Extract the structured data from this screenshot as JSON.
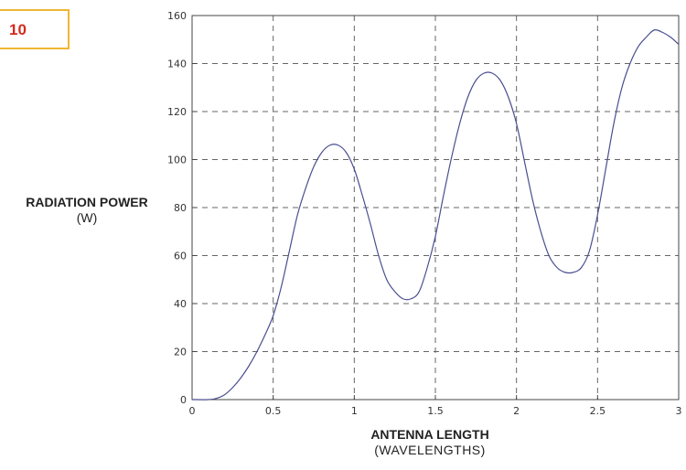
{
  "figure_number": "10",
  "chart_data": {
    "type": "line",
    "xlabel": "ANTENNA LENGTH",
    "xlabel_unit": "(WAVELENGTHS)",
    "ylabel": "RADIATION POWER",
    "ylabel_unit": "(W)",
    "xlim": [
      0,
      3
    ],
    "ylim": [
      0,
      160
    ],
    "xticks": [
      0,
      0.5,
      1,
      1.5,
      2,
      2.5,
      3
    ],
    "xtick_labels": [
      "0",
      "0.5",
      "1",
      "1.5",
      "2",
      "2.5",
      "3"
    ],
    "yticks": [
      0,
      20,
      40,
      60,
      80,
      100,
      120,
      140,
      160
    ],
    "ytick_labels": [
      "0",
      "20",
      "40",
      "60",
      "80",
      "100",
      "120",
      "140",
      "160"
    ],
    "grid": true,
    "line_color": "#4a4e8f",
    "series": [
      {
        "x": [
          0,
          0.1,
          0.15,
          0.2,
          0.25,
          0.3,
          0.35,
          0.4,
          0.45,
          0.5,
          0.55,
          0.6,
          0.65,
          0.7,
          0.75,
          0.8,
          0.85,
          0.9,
          0.95,
          1.0,
          1.05,
          1.1,
          1.15,
          1.2,
          1.25,
          1.3,
          1.35,
          1.4,
          1.45,
          1.5,
          1.55,
          1.6,
          1.65,
          1.7,
          1.75,
          1.8,
          1.85,
          1.9,
          1.95,
          2.0,
          2.05,
          2.1,
          2.15,
          2.2,
          2.25,
          2.3,
          2.35,
          2.4,
          2.45,
          2.5,
          2.55,
          2.6,
          2.65,
          2.7,
          2.75,
          2.8,
          2.85,
          2.9,
          2.95,
          3.0
        ],
        "y": [
          0,
          0,
          0.5,
          2,
          5,
          9,
          14,
          20,
          27,
          35,
          47,
          62,
          77,
          88,
          97,
          103,
          106,
          106,
          103,
          96,
          85,
          73,
          60,
          50,
          45,
          42,
          42,
          45,
          55,
          68,
          85,
          101,
          115,
          126,
          133,
          136,
          136,
          133,
          126,
          115,
          99,
          83,
          70,
          60,
          55,
          53,
          53,
          55,
          62,
          77,
          96,
          115,
          130,
          140,
          147,
          151,
          154,
          153,
          151,
          148
        ]
      }
    ]
  }
}
